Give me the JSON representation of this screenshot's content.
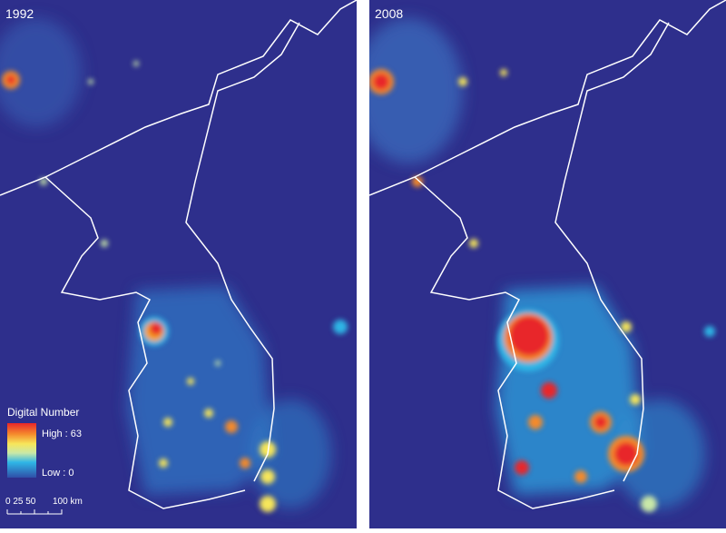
{
  "panels": [
    {
      "title": "1992"
    },
    {
      "title": "2008"
    }
  ],
  "legend": {
    "title": "Digital Number",
    "high": "High : 63",
    "low": "Low : 0"
  },
  "scale_bar": {
    "left_label": "0 25 50",
    "right_label": "100 km"
  }
}
